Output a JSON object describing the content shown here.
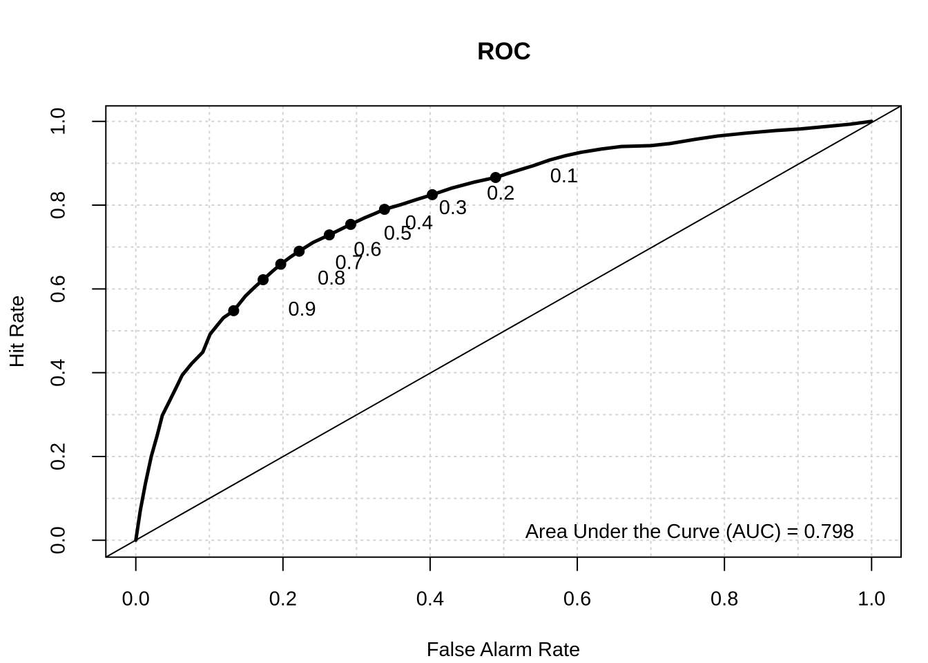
{
  "title": "ROC",
  "axes": {
    "xlabel": "False Alarm Rate",
    "ylabel": "Hit Rate",
    "x_tick_labels": [
      "0.0",
      "0.2",
      "0.4",
      "0.6",
      "0.8",
      "1.0"
    ],
    "y_tick_labels": [
      "0.0",
      "0.2",
      "0.4",
      "0.6",
      "0.8",
      "1.0"
    ]
  },
  "annotation": "Area Under the Curve (AUC) = 0.798",
  "colors": {
    "curve": "#000000",
    "diagonal": "#000000",
    "grid": "#d3d3d3",
    "text": "#000000",
    "background": "#ffffff"
  },
  "chart_data": {
    "type": "line",
    "title": "ROC",
    "xlabel": "False Alarm Rate",
    "ylabel": "Hit Rate",
    "xlim": [
      0,
      1
    ],
    "ylim": [
      0,
      1
    ],
    "grid": {
      "visible": true,
      "style": "dashed",
      "step": 0.1
    },
    "auc": 0.798,
    "annotation": "Area Under the Curve (AUC) = 0.798",
    "diagonal_line": {
      "from": [
        0,
        0
      ],
      "to": [
        1,
        1
      ],
      "style": "thin"
    },
    "roc_curve": {
      "x": [
        0,
        0.006,
        0.013,
        0.021,
        0.029,
        0.036,
        0.046,
        0.055,
        0.063,
        0.076,
        0.091,
        0.101,
        0.112,
        0.119,
        0.133,
        0.149,
        0.162,
        0.173,
        0.185,
        0.197,
        0.21,
        0.222,
        0.241,
        0.263,
        0.278,
        0.292,
        0.31,
        0.325,
        0.338,
        0.36,
        0.381,
        0.403,
        0.43,
        0.46,
        0.489,
        0.51,
        0.54,
        0.563,
        0.584,
        0.605,
        0.633,
        0.66,
        0.7,
        0.726,
        0.76,
        0.791,
        0.83,
        0.87,
        0.904,
        0.94,
        0.97,
        1.0
      ],
      "y": [
        0,
        0.07,
        0.135,
        0.2,
        0.25,
        0.298,
        0.333,
        0.365,
        0.394,
        0.422,
        0.449,
        0.492,
        0.516,
        0.531,
        0.548,
        0.583,
        0.605,
        0.622,
        0.641,
        0.659,
        0.676,
        0.69,
        0.711,
        0.729,
        0.742,
        0.754,
        0.769,
        0.78,
        0.79,
        0.801,
        0.813,
        0.825,
        0.841,
        0.855,
        0.866,
        0.878,
        0.894,
        0.908,
        0.918,
        0.926,
        0.934,
        0.94,
        0.942,
        0.947,
        0.957,
        0.965,
        0.972,
        0.978,
        0.982,
        0.988,
        0.993,
        1.0
      ]
    },
    "threshold_points": [
      {
        "threshold": "0.9",
        "fpr": 0.133,
        "tpr": 0.548
      },
      {
        "threshold": "0.8",
        "fpr": 0.173,
        "tpr": 0.622
      },
      {
        "threshold": "0.7",
        "fpr": 0.197,
        "tpr": 0.659
      },
      {
        "threshold": "0.6",
        "fpr": 0.222,
        "tpr": 0.69
      },
      {
        "threshold": "0.5",
        "fpr": 0.263,
        "tpr": 0.729
      },
      {
        "threshold": "0.4",
        "fpr": 0.292,
        "tpr": 0.754
      },
      {
        "threshold": "0.3",
        "fpr": 0.338,
        "tpr": 0.79
      },
      {
        "threshold": "0.2",
        "fpr": 0.403,
        "tpr": 0.825
      },
      {
        "threshold": "0.1",
        "fpr": 0.489,
        "tpr": 0.866
      }
    ],
    "x_ticks": [
      0.0,
      0.2,
      0.4,
      0.6,
      0.8,
      1.0
    ],
    "y_ticks": [
      0.0,
      0.2,
      0.4,
      0.6,
      0.8,
      1.0
    ]
  }
}
